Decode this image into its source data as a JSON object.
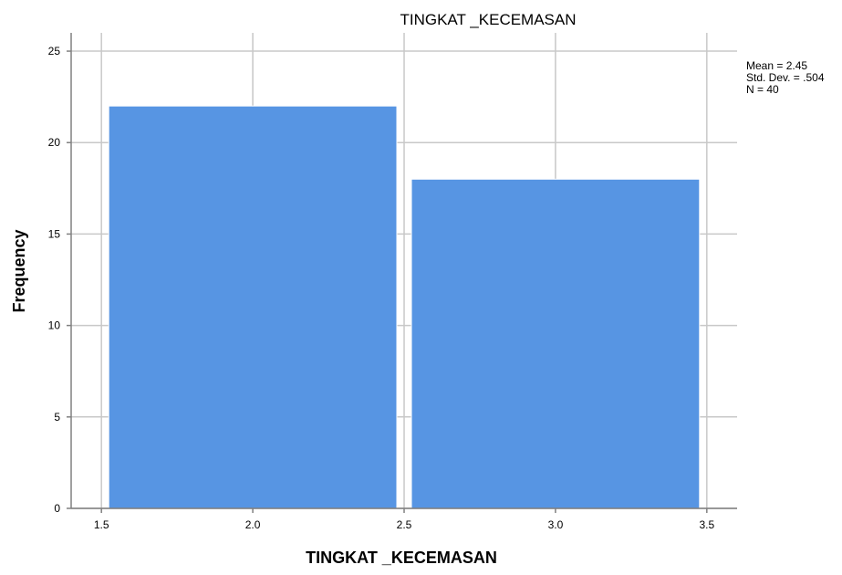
{
  "chart_data": {
    "type": "bar",
    "subtype": "histogram",
    "title": "TINGKAT _KECEMASAN",
    "xlabel": "TINGKAT _KECEMASAN",
    "ylabel": "Frequency",
    "bins": [
      {
        "from": 1.5,
        "to": 2.5,
        "value": 22
      },
      {
        "from": 2.5,
        "to": 3.5,
        "value": 18
      }
    ],
    "xlim": [
      1.4,
      3.6
    ],
    "ylim": [
      0,
      26
    ],
    "x_ticks": [
      "1.5",
      "2.0",
      "2.5",
      "3.0",
      "3.5"
    ],
    "y_ticks": [
      "0",
      "5",
      "10",
      "15",
      "20",
      "25"
    ],
    "grid": true,
    "bar_color": "#5795e3",
    "stats": {
      "mean": "Mean = 2.45",
      "std": "Std. Dev. = .504",
      "n": "N = 40"
    },
    "legend_position": "top-right"
  }
}
